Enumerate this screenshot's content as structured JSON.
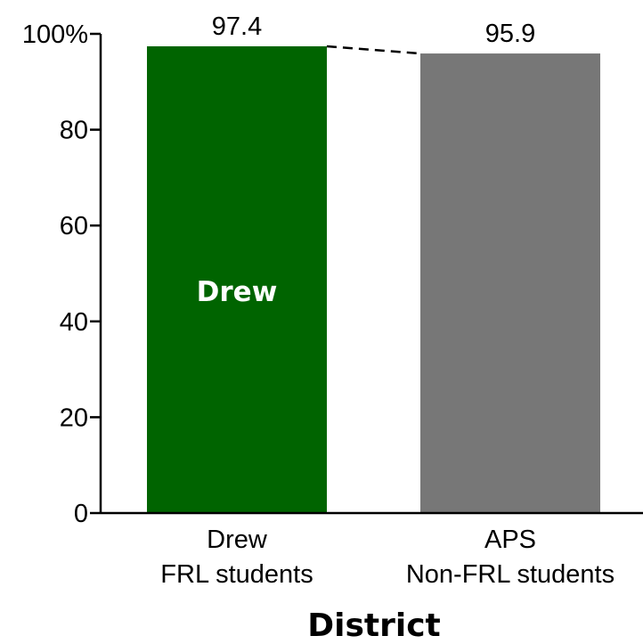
{
  "chart_data": {
    "type": "bar",
    "categories": [
      [
        "Drew",
        "FRL students"
      ],
      [
        "APS",
        "Non-FRL students"
      ]
    ],
    "values": [
      97.4,
      95.9
    ],
    "value_labels": [
      "97.4",
      "95.9"
    ],
    "bar_colors": [
      "#006400",
      "#777777"
    ],
    "bar_inner_labels": [
      "Drew",
      ""
    ],
    "xlabel": "District",
    "ylabel": "",
    "ylim": [
      0,
      100
    ],
    "yticks": [
      0,
      20,
      40,
      60,
      80,
      100
    ],
    "ytick_labels": [
      "0",
      "20",
      "40",
      "60",
      "80",
      "100%"
    ],
    "connector": "dashed",
    "grid": false
  }
}
